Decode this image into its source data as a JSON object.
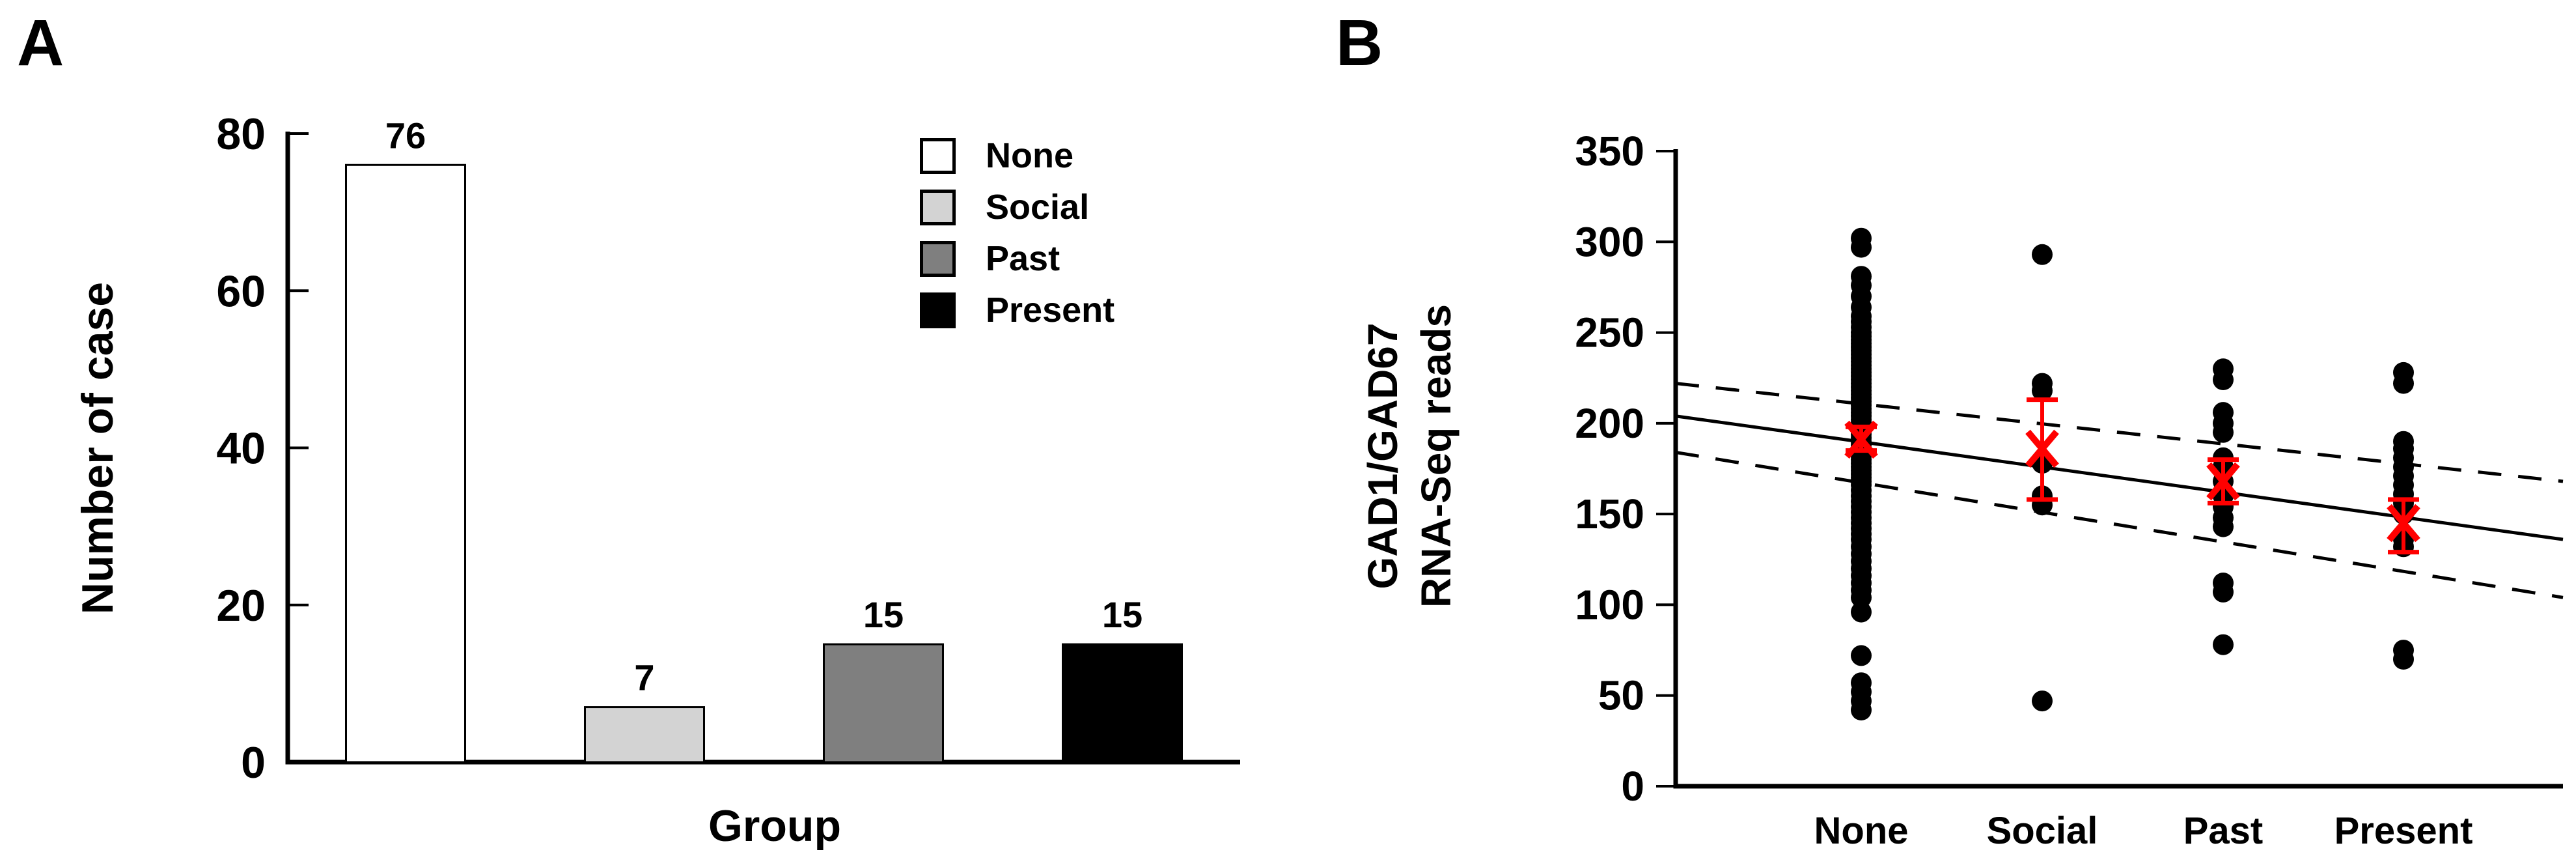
{
  "figure": {
    "panel_a_letter": "A",
    "panel_b_letter": "B"
  },
  "colors": {
    "background": "#ffffff",
    "axis": "#000000",
    "text": "#000000",
    "scatter_marker": "#000000",
    "mean_marker_red": "#ff0000"
  },
  "chart_data": [
    {
      "id": "panel-a-case-count",
      "type": "bar",
      "title": "",
      "categories": [
        "None",
        "Social",
        "Past",
        "Present"
      ],
      "values": [
        76,
        7,
        15,
        15
      ],
      "bar_value_labels": [
        "76",
        "7",
        "15",
        "15"
      ],
      "bar_colors": [
        "#ffffff",
        "#d3d3d3",
        "#7f7f7f",
        "#000000"
      ],
      "bar_border_color": "#000000",
      "xlabel": "Group",
      "ylabel": "Number of case",
      "ylim": [
        0,
        80
      ],
      "yticks": [
        0,
        20,
        40,
        60,
        80
      ],
      "grid": false,
      "legend": {
        "position": "top-right",
        "entries": [
          {
            "label": "None",
            "color": "#ffffff"
          },
          {
            "label": "Social",
            "color": "#d3d3d3"
          },
          {
            "label": "Past",
            "color": "#7f7f7f"
          },
          {
            "label": "Present",
            "color": "#000000"
          }
        ]
      }
    },
    {
      "id": "panel-b-gad1-reads",
      "type": "scatter",
      "title": "",
      "categories": [
        "None",
        "Social",
        "Past",
        "Present"
      ],
      "ylabel_lines": [
        "GAD1/GAD67",
        "RNA-Seq reads"
      ],
      "ylim": [
        0,
        350
      ],
      "yticks": [
        0,
        50,
        100,
        150,
        200,
        250,
        300,
        350
      ],
      "grid": false,
      "series": [
        {
          "name": "None",
          "values": [
            302,
            297,
            281,
            276,
            270,
            264,
            259,
            256,
            253,
            250,
            248,
            246,
            244,
            242,
            240,
            238,
            236,
            234,
            232,
            230,
            228,
            226,
            224,
            222,
            220,
            218,
            216,
            214,
            212,
            210,
            208,
            206,
            204,
            202,
            200,
            198,
            196,
            194,
            192,
            190,
            188,
            186,
            184,
            182,
            180,
            178,
            176,
            174,
            172,
            170,
            168,
            166,
            163,
            160,
            157,
            154,
            151,
            148,
            145,
            142,
            139,
            136,
            132,
            128,
            124,
            120,
            116,
            112,
            108,
            104,
            96,
            72,
            57,
            52,
            47,
            42
          ]
        },
        {
          "name": "Social",
          "values": [
            293,
            222,
            218,
            178,
            160,
            155,
            47
          ]
        },
        {
          "name": "Past",
          "values": [
            230,
            224,
            206,
            200,
            195,
            181,
            176,
            168,
            160,
            154,
            148,
            143,
            112,
            107,
            78
          ]
        },
        {
          "name": "Present",
          "values": [
            228,
            222,
            190,
            186,
            181,
            176,
            171,
            166,
            161,
            156,
            150,
            136,
            132,
            75,
            70
          ]
        }
      ],
      "means": {
        "marker": "x-with-error-bar",
        "color": "#ff0000",
        "values": [
          191,
          186,
          168,
          145
        ],
        "error_low": [
          185,
          158,
          156,
          129
        ],
        "error_high": [
          198,
          213,
          180,
          158
        ]
      },
      "regression": {
        "solid_line": {
          "y_start": 204,
          "y_end": 136
        },
        "upper_dashed": {
          "y_start": 222,
          "y_end": 168
        },
        "lower_dashed": {
          "y_start": 184,
          "y_end": 104
        }
      }
    }
  ]
}
